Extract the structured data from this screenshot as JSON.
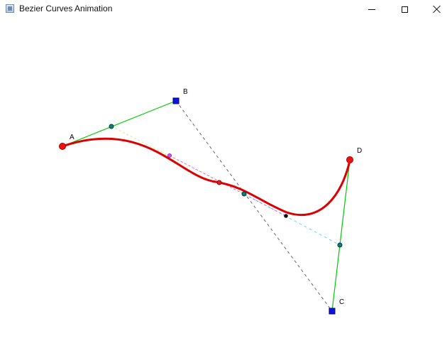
{
  "window": {
    "title": "Bezier Curves Animation"
  },
  "icons": {
    "app": "app-icon",
    "minimize": "minimize-icon",
    "maximize": "maximize-icon",
    "close": "close-icon"
  },
  "labels": {
    "a": "A",
    "b": "B",
    "c": "C",
    "d": "D"
  },
  "colors": {
    "curve": "#dd0000",
    "control_polygon": "#00cc00",
    "control_points": "#1111dd",
    "end_points": "#ee1111",
    "lerp_points": "#0b7f7f",
    "guide_dark": "#666666",
    "guide_yellow": "#e4e58d",
    "guide_cyan": "#64d8ff",
    "guide_magenta": "#d56bf2",
    "point_purple": "#d05bf3",
    "point_black": "#111111"
  }
}
